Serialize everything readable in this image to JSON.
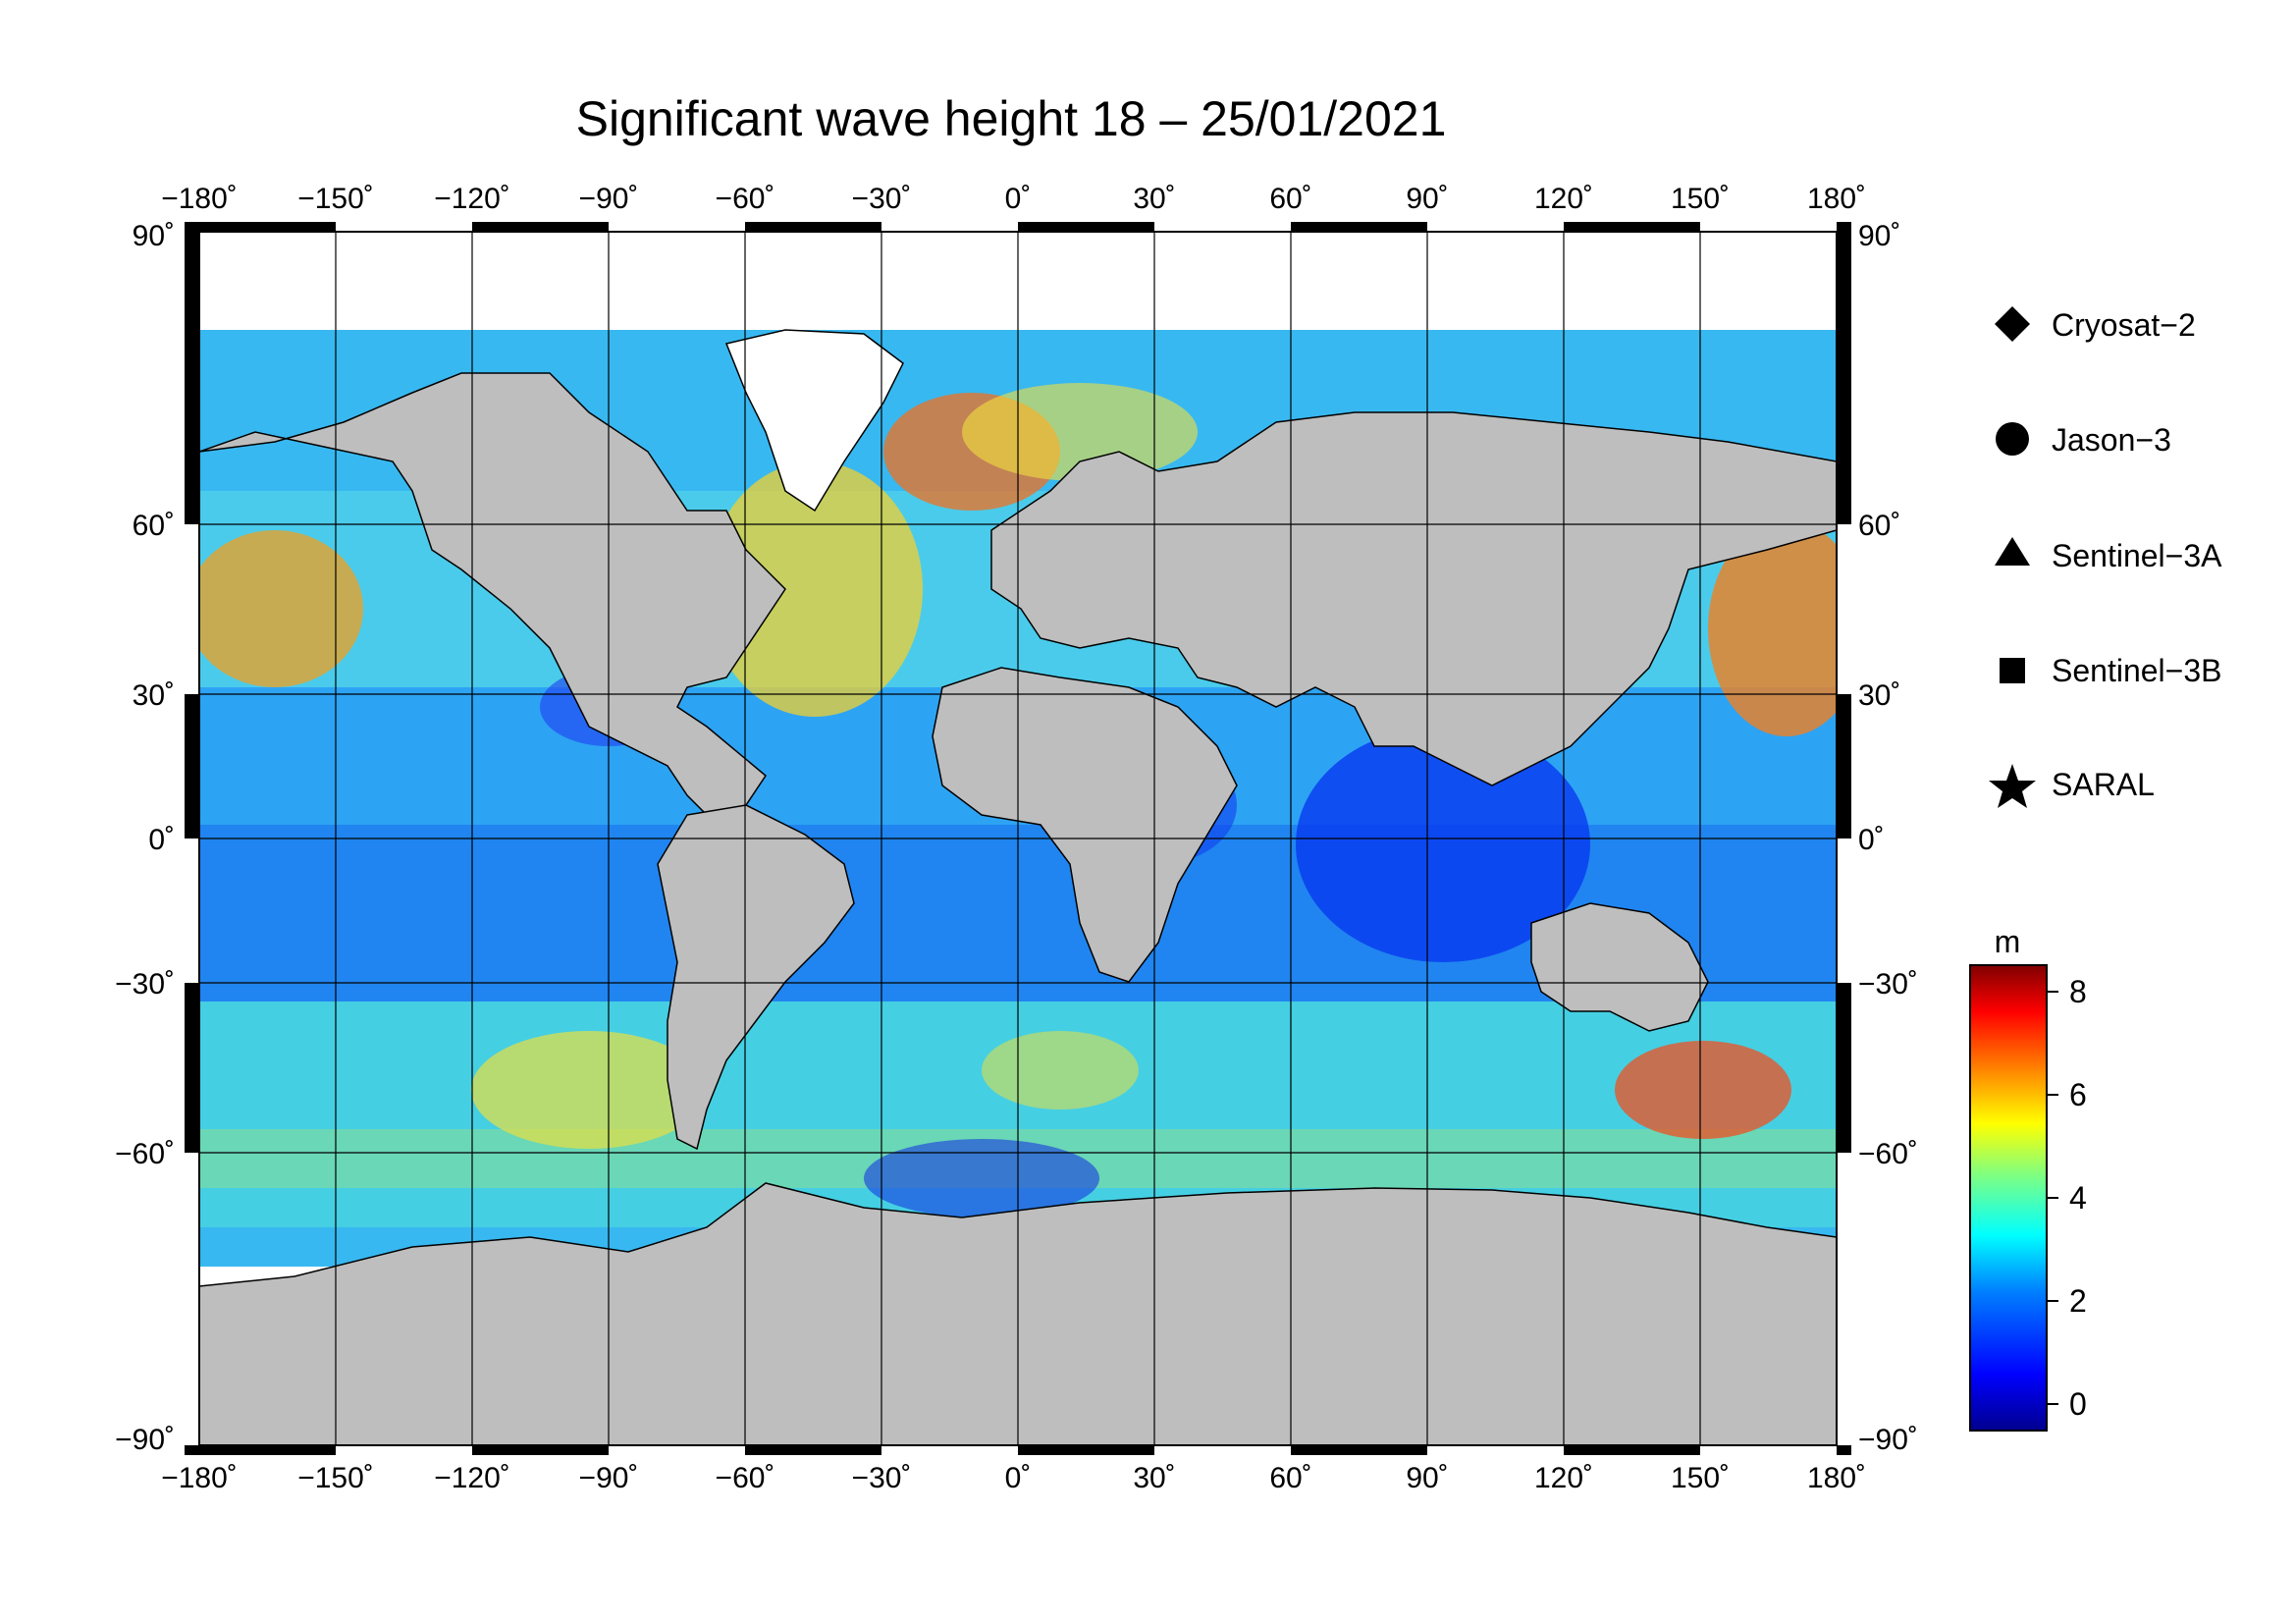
{
  "title": "Significant wave height 18 – 25/01/2021",
  "map": {
    "projection": "equirectangular",
    "lon_range": [
      -180,
      180
    ],
    "lat_range": [
      -90,
      90
    ],
    "lon_ticks": [
      "−180˚",
      "−150˚",
      "−120˚",
      "−90˚",
      "−60˚",
      "−30˚",
      "0˚",
      "30˚",
      "60˚",
      "90˚",
      "120˚",
      "150˚",
      "180˚"
    ],
    "lat_ticks_left": [
      "90˚",
      "60˚",
      "30˚",
      "0˚",
      "−30˚",
      "−60˚",
      "−90˚"
    ],
    "lat_ticks_right": [
      "90˚",
      "60˚",
      "30˚",
      "0˚",
      "−30˚",
      "−60˚",
      "−90˚"
    ],
    "grid": true,
    "land_color": "#bebebe",
    "ice_color": "#ffffff"
  },
  "legend": {
    "items": [
      {
        "symbol": "diamond-icon",
        "label": "Cryosat−2"
      },
      {
        "symbol": "circle-icon",
        "label": "Jason−3"
      },
      {
        "symbol": "triangle-icon",
        "label": "Sentinel−3A"
      },
      {
        "symbol": "square-icon",
        "label": "Sentinel−3B"
      },
      {
        "symbol": "star-icon",
        "label": "SARAL"
      }
    ]
  },
  "colorbar": {
    "unit": "m",
    "ticks": [
      "8",
      "6",
      "4",
      "2",
      "0"
    ],
    "range": [
      -0.5,
      8.5
    ],
    "colors": [
      "#00008f",
      "#0000ff",
      "#0080ff",
      "#00ffff",
      "#80ff80",
      "#ffff00",
      "#ff8000",
      "#ff0000",
      "#800000"
    ]
  },
  "chart_data": {
    "type": "heatmap",
    "title": "Significant wave height 18 – 25/01/2021",
    "variable": "Significant wave height",
    "unit": "m",
    "value_range": [
      0,
      8
    ],
    "x_range": [
      -180,
      180
    ],
    "y_range": [
      -90,
      90
    ]
  }
}
